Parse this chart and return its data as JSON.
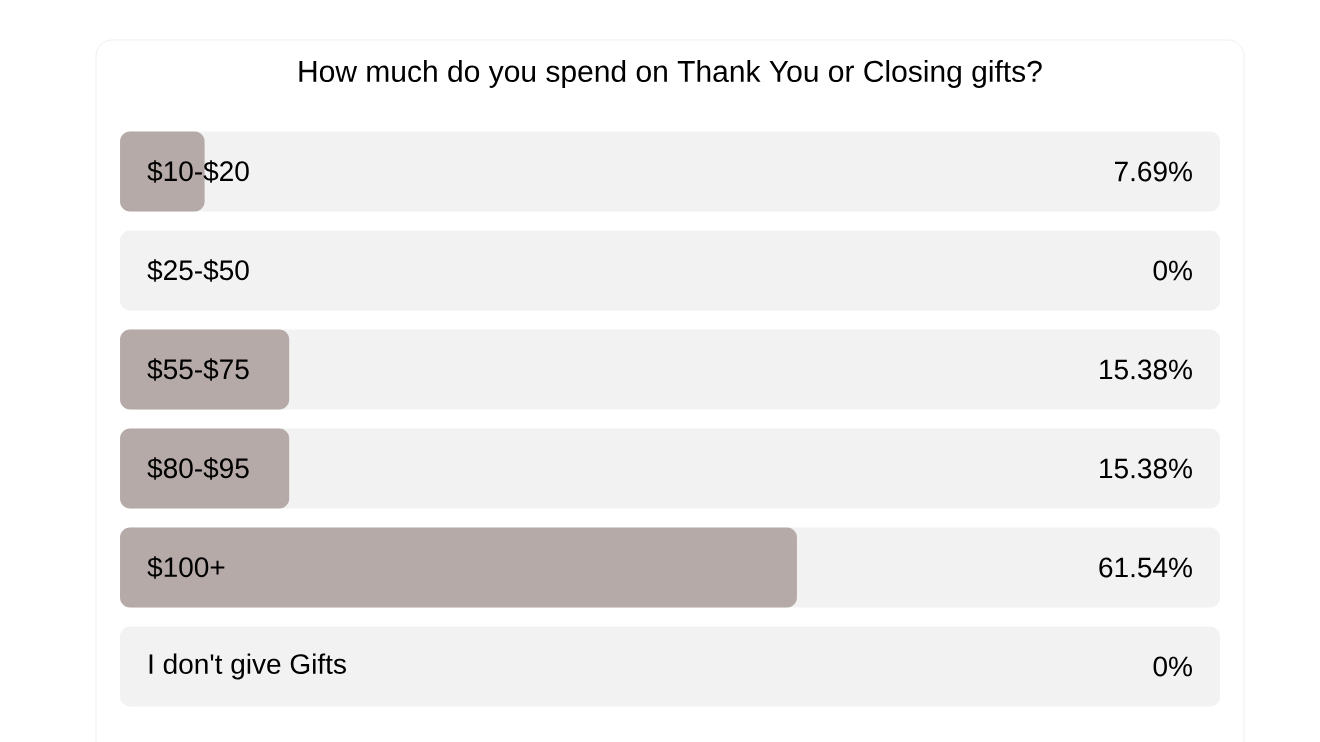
{
  "chart_data": {
    "type": "bar",
    "orientation": "horizontal",
    "title": "How much do you spend on Thank You or Closing gifts?",
    "categories": [
      "$10-$20",
      "$25-$50",
      "$55-$75",
      "$80-$95",
      "$100+",
      "I don't give Gifts"
    ],
    "values": [
      7.69,
      0,
      15.38,
      15.38,
      61.54,
      0
    ],
    "value_labels": [
      "7.69%",
      "0%",
      "15.38%",
      "15.38%",
      "61.54%",
      "0%"
    ],
    "color": "#b5aaa8",
    "xlim": [
      0,
      100
    ]
  }
}
